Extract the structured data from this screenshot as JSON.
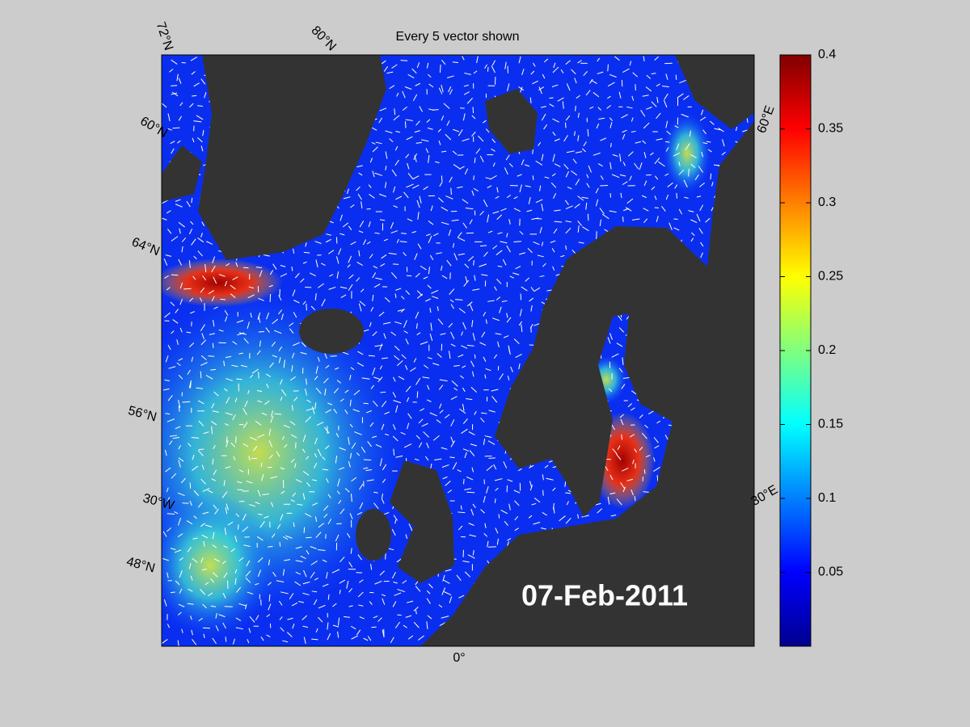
{
  "title": "Every 5 vector shown",
  "date_label": "07-Feb-2011",
  "graticule_labels": [
    "72°N",
    "80°N",
    "60°N",
    "64°N",
    "56°N",
    "30°W",
    "48°N",
    "0°",
    "30°E",
    "60°E"
  ],
  "colorbar": {
    "lim": [
      0,
      0.4
    ],
    "ticks": [
      0.05,
      0.1,
      0.15,
      0.2,
      0.25,
      0.3,
      0.35,
      0.4
    ]
  }
}
